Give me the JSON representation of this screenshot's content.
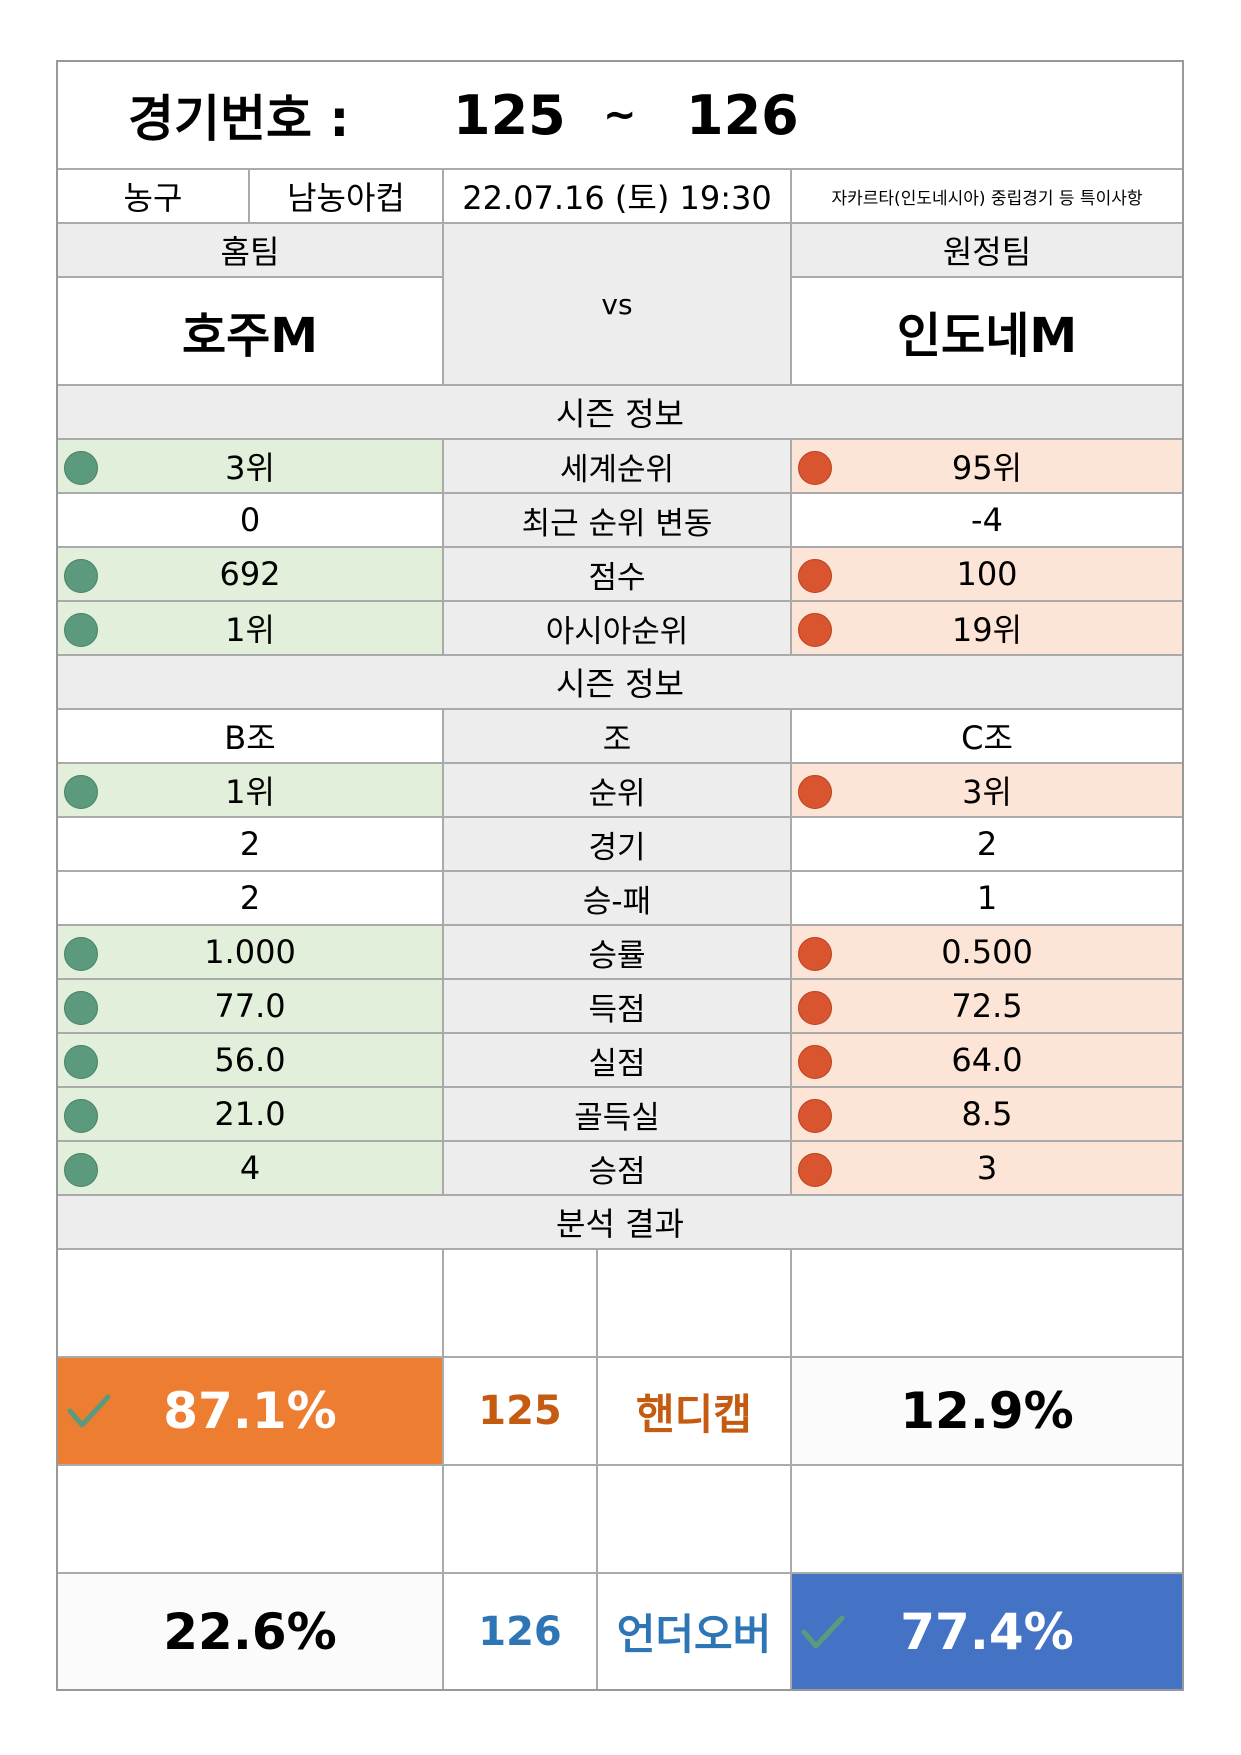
{
  "header": {
    "label": "경기번호 :",
    "game_from": "125",
    "tilde": "~",
    "game_to": "126"
  },
  "info": {
    "sport": "농구",
    "league": "남농아컵",
    "datetime": "22.07.16 (토) 19:30",
    "note": "자카르타(인도네시아) 중립경기 등 특이사항"
  },
  "teams": {
    "home_label": "홈팀",
    "away_label": "원정팀",
    "home_name": "호주M",
    "away_name": "인도네M",
    "vs": "vs"
  },
  "season1": {
    "title": "시즌 정보",
    "rows": [
      {
        "home": "3위",
        "label": "세계순위",
        "away": "95위"
      },
      {
        "home": "0",
        "label": "최근 순위 변동",
        "away": "-4"
      },
      {
        "home": "692",
        "label": "점수",
        "away": "100"
      },
      {
        "home": "1위",
        "label": "아시아순위",
        "away": "19위"
      }
    ]
  },
  "season2": {
    "title": "시즌 정보",
    "rows": [
      {
        "home": "B조",
        "label": "조",
        "away": "C조"
      },
      {
        "home": "1위",
        "label": "순위",
        "away": "3위"
      },
      {
        "home": "2",
        "label": "경기",
        "away": "2"
      },
      {
        "home": "2",
        "label": "승-패",
        "away": "1"
      },
      {
        "home": "1.000",
        "label": "승률",
        "away": "0.500"
      },
      {
        "home": "77.0",
        "label": "득점",
        "away": "72.5"
      },
      {
        "home": "56.0",
        "label": "실점",
        "away": "64.0"
      },
      {
        "home": "21.0",
        "label": "골득실",
        "away": "8.5"
      },
      {
        "home": "4",
        "label": "승점",
        "away": "3"
      }
    ]
  },
  "analysis": {
    "title": "분석 결과",
    "results": [
      {
        "home_pct": "87.1%",
        "game": "125",
        "type": "핸디캡",
        "away_pct": "12.9%",
        "pick": "home"
      },
      {
        "home_pct": "22.6%",
        "game": "126",
        "type": "언더오버",
        "away_pct": "77.4%",
        "pick": "away"
      }
    ]
  },
  "colors": {
    "home_win_bg": "#ed7d31",
    "away_win_bg": "#4472c4",
    "handicap_text": "#c55a11",
    "underover_text": "#2e75b6",
    "home_dot": "#5c9a7e",
    "away_dot": "#d9552f",
    "green_bg": "#e2efda",
    "salmon_bg": "#fce4d6"
  },
  "icons": {
    "good": "green-dot-icon",
    "bad": "red-dot-icon",
    "pick": "check-icon"
  }
}
